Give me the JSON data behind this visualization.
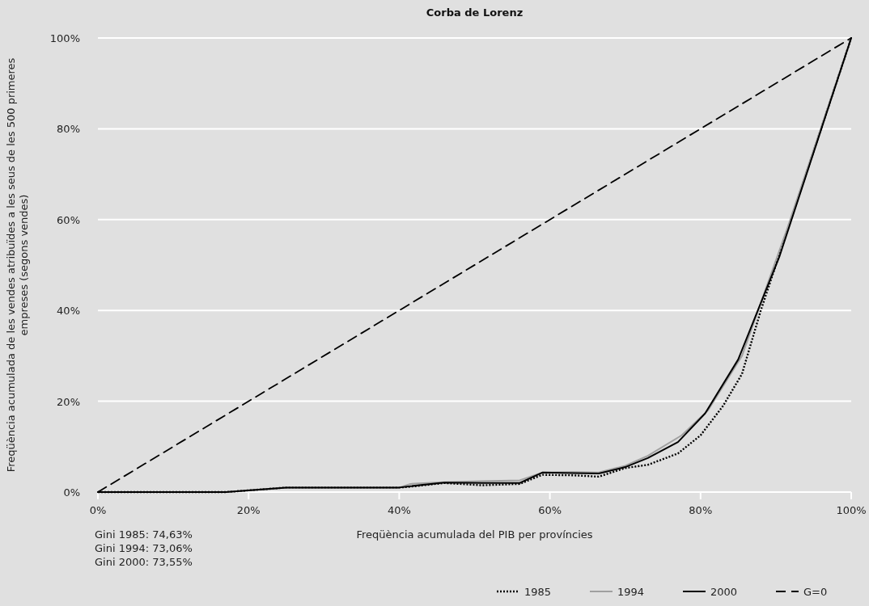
{
  "chart_data": {
    "type": "line",
    "title": "Corba de Lorenz",
    "xlabel": "Freqüència acumulada del PIB per províncies",
    "ylabel": "Freqüència acumulada de les vendes atribuïdes a les seus de les 500 primeres empreses (segons vendes)",
    "xlim": [
      0,
      100
    ],
    "ylim": [
      0,
      100
    ],
    "xticks": [
      {
        "value": 0,
        "label": "0%"
      },
      {
        "value": 20,
        "label": "20%"
      },
      {
        "value": 40,
        "label": "40%"
      },
      {
        "value": 60,
        "label": "60%"
      },
      {
        "value": 80,
        "label": "80%"
      },
      {
        "value": 100,
        "label": "100%"
      }
    ],
    "yticks": [
      {
        "value": 0,
        "label": "0%"
      },
      {
        "value": 20,
        "label": "20%"
      },
      {
        "value": 40,
        "label": "40%"
      },
      {
        "value": 60,
        "label": "60%"
      },
      {
        "value": 80,
        "label": "80%"
      },
      {
        "value": 100,
        "label": "100%"
      }
    ],
    "grid": "y",
    "legend": "bottom right",
    "marker": "none",
    "annotations": [
      "Gini 1985: 74,63%",
      "Gini 1994: 73,06%",
      "Gini 2000: 73,55%"
    ],
    "series": [
      {
        "name": "1985",
        "color": "#000000",
        "line_style": "dotted",
        "x": [
          0,
          17,
          21,
          25,
          40,
          41.5,
          46,
          51,
          56,
          59,
          63,
          66.5,
          70,
          73,
          77,
          80,
          83,
          85.5,
          88,
          92,
          100
        ],
        "values": [
          0,
          0,
          0.5,
          1,
          1,
          1.2,
          2,
          1.5,
          1.8,
          3.8,
          3.7,
          3.4,
          5.3,
          6,
          8.5,
          12.5,
          19,
          26,
          40,
          60,
          100
        ]
      },
      {
        "name": "1994",
        "color": "#a0a0a0",
        "line_style": "solid",
        "x": [
          0,
          17,
          21,
          25,
          40,
          41.5,
          46,
          51,
          56,
          59,
          63,
          66.5,
          70,
          73,
          77.5,
          81,
          85.5,
          91.5,
          100
        ],
        "values": [
          0,
          0,
          0.5,
          1,
          1,
          1.8,
          2.2,
          2.4,
          2.6,
          4.3,
          4.4,
          4.3,
          5.8,
          8,
          12.5,
          18,
          30,
          58,
          100
        ]
      },
      {
        "name": "2000",
        "color": "#000000",
        "line_style": "solid",
        "x": [
          0,
          17,
          21,
          25,
          40,
          41.5,
          46,
          51,
          56,
          59,
          63,
          66.5,
          70,
          73,
          77,
          80.6,
          85,
          90.5,
          100
        ],
        "values": [
          0,
          0,
          0.5,
          1,
          1,
          1.3,
          2.1,
          2,
          2,
          4.3,
          4.2,
          4.1,
          5.5,
          7.5,
          11,
          17.3,
          29.2,
          52,
          100
        ]
      },
      {
        "name": "G=0",
        "color": "#000000",
        "line_style": "dashed",
        "x": [
          0,
          100
        ],
        "values": [
          0,
          100
        ]
      }
    ]
  }
}
